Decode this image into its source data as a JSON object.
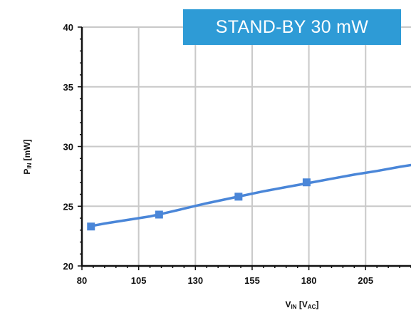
{
  "chart_data": {
    "type": "line",
    "title": "STAND-BY 30 mW",
    "xlabel": {
      "main": "V",
      "sub": "IN",
      "unit_open": " [V",
      "unit_sub": "AC",
      "unit_close": "]"
    },
    "ylabel": {
      "main": "P",
      "sub": "IN",
      "unit": " [mW]"
    },
    "xlim": [
      80,
      225
    ],
    "ylim": [
      20,
      40
    ],
    "x_ticks": [
      80,
      105,
      130,
      155,
      180,
      205
    ],
    "y_ticks": [
      20,
      25,
      30,
      35,
      40
    ],
    "grid": true,
    "series": [
      {
        "color": "#4a86d8",
        "curve_x": [
          83,
          90,
          100,
          110,
          115,
          125,
          135,
          145,
          150,
          160,
          170,
          180,
          190,
          200,
          210,
          220,
          225
        ],
        "curve_y": [
          23.3,
          23.55,
          23.85,
          24.15,
          24.35,
          24.8,
          25.25,
          25.65,
          25.85,
          26.25,
          26.6,
          26.95,
          27.3,
          27.65,
          27.95,
          28.3,
          28.45
        ],
        "markers_x": [
          84,
          114,
          149,
          179
        ],
        "markers_y": [
          23.3,
          24.3,
          25.8,
          27.0
        ]
      }
    ]
  }
}
